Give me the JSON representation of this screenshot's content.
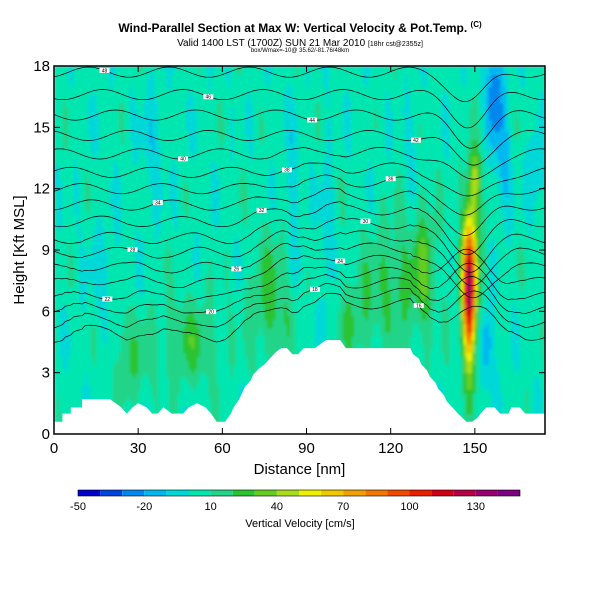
{
  "header": {
    "title": "Wind-Parallel Section at Max W: Vertical Velocity & Pot.Temp.",
    "title_mark": "(C)",
    "subtitle": "Valid 1400 LST (1700Z) SUN 21 Mar 2010",
    "subtitle_small": "[18hr cst@2355z]",
    "subsub": "box/Wmax=-10@ 35.62/-81.76/48km"
  },
  "chart_data": {
    "type": "heatmap",
    "title": "Wind-Parallel Section at Max W: Vertical Velocity & Pot.Temp.",
    "xlabel": "Distance [nm]",
    "ylabel": "Height [Kft MSL]",
    "xlim": [
      0,
      175
    ],
    "ylim": [
      0,
      18
    ],
    "xticks": [
      0,
      30,
      60,
      90,
      120,
      150
    ],
    "yticks": [
      0,
      3,
      6,
      9,
      12,
      15,
      18
    ],
    "colorbar": {
      "title": "Vertical Velocity [cm/s]",
      "tick_labels": [
        "-50",
        "-20",
        "10",
        "40",
        "70",
        "100",
        "130"
      ],
      "tick_values": [
        -50,
        -20,
        10,
        40,
        70,
        100,
        130
      ],
      "boundaries": [
        -50,
        -40,
        -30,
        -20,
        -10,
        0,
        10,
        20,
        30,
        40,
        50,
        60,
        70,
        80,
        90,
        100,
        110,
        120,
        130,
        140,
        150
      ],
      "colors": [
        "#0000cc",
        "#0044dd",
        "#0088ee",
        "#00b8f0",
        "#00d8d8",
        "#00e6b0",
        "#22d488",
        "#2ac430",
        "#66cc22",
        "#a8dc1a",
        "#eef000",
        "#f0c800",
        "#f0a000",
        "#f07800",
        "#f04a00",
        "#e82000",
        "#d00018",
        "#b40044",
        "#960070",
        "#7c0080"
      ]
    },
    "terrain_kft": [
      [
        0,
        0.6
      ],
      [
        3,
        0.6
      ],
      [
        3,
        1.0
      ],
      [
        6,
        1.0
      ],
      [
        6,
        1.3
      ],
      [
        10,
        1.3
      ],
      [
        10,
        1.7
      ],
      [
        20,
        1.7
      ],
      [
        22,
        1.5
      ],
      [
        24,
        1.3
      ],
      [
        26,
        1.0
      ],
      [
        28,
        1.3
      ],
      [
        30,
        1.5
      ],
      [
        33,
        1.3
      ],
      [
        35,
        1.0
      ],
      [
        37,
        1.0
      ],
      [
        39,
        1.3
      ],
      [
        42,
        1.0
      ],
      [
        46,
        1.0
      ],
      [
        48,
        1.3
      ],
      [
        51,
        1.5
      ],
      [
        54,
        1.3
      ],
      [
        56,
        1.0
      ],
      [
        58,
        0.6
      ],
      [
        61,
        0.6
      ],
      [
        63,
        1.0
      ],
      [
        64,
        1.3
      ],
      [
        65,
        1.5
      ],
      [
        66,
        1.7
      ],
      [
        67,
        2.0
      ],
      [
        68,
        2.3
      ],
      [
        70,
        2.6
      ],
      [
        71,
        2.9
      ],
      [
        73,
        3.2
      ],
      [
        75,
        3.4
      ],
      [
        77,
        3.7
      ],
      [
        79,
        4.0
      ],
      [
        81,
        4.2
      ],
      [
        83,
        4.2
      ],
      [
        85,
        3.9
      ],
      [
        87,
        3.9
      ],
      [
        89,
        4.2
      ],
      [
        93,
        4.2
      ],
      [
        95,
        4.4
      ],
      [
        97,
        4.6
      ],
      [
        102,
        4.6
      ],
      [
        104,
        4.2
      ],
      [
        127,
        4.2
      ],
      [
        128,
        3.9
      ],
      [
        130,
        3.7
      ],
      [
        131,
        3.4
      ],
      [
        133,
        3.1
      ],
      [
        134,
        2.8
      ],
      [
        136,
        2.5
      ],
      [
        137,
        2.2
      ],
      [
        139,
        1.9
      ],
      [
        140,
        1.6
      ],
      [
        142,
        1.3
      ],
      [
        144,
        1.0
      ],
      [
        147,
        0.6
      ],
      [
        149,
        0.6
      ],
      [
        151,
        0.8
      ],
      [
        152,
        1.0
      ],
      [
        154,
        1.3
      ],
      [
        157,
        1.3
      ],
      [
        159,
        1.0
      ],
      [
        162,
        1.0
      ],
      [
        163,
        1.3
      ],
      [
        166,
        1.3
      ],
      [
        168,
        1.0
      ],
      [
        175,
        1.0
      ]
    ],
    "theta_contours": [
      {
        "label": "48",
        "y0": 17.7
      },
      {
        "label": "46",
        "y0": 16.6
      },
      {
        "label": "44",
        "y0": 15.6
      },
      {
        "label": "42",
        "y0": 14.6
      },
      {
        "label": "40",
        "y0": 13.7
      },
      {
        "label": "38",
        "y0": 12.8
      },
      {
        "label": "36",
        "y0": 12.0
      },
      {
        "label": "34",
        "y0": 11.2
      },
      {
        "label": "32",
        "y0": 10.4
      },
      {
        "label": "30",
        "y0": 9.6
      },
      {
        "label": "28",
        "y0": 8.9
      },
      {
        "label": "26",
        "y0": 8.2
      },
      {
        "label": "24",
        "y0": 7.5
      },
      {
        "label": "22",
        "y0": 6.8
      },
      {
        "label": "20",
        "y0": 6.2
      },
      {
        "label": "18",
        "y0": 5.6
      },
      {
        "label": "16",
        "y0": 5.0
      }
    ],
    "updraft_core": {
      "x": 148,
      "y": 7.0,
      "peak": 115
    },
    "downdraft_core": {
      "x": 154,
      "y": 4.5,
      "peak": -25
    }
  }
}
